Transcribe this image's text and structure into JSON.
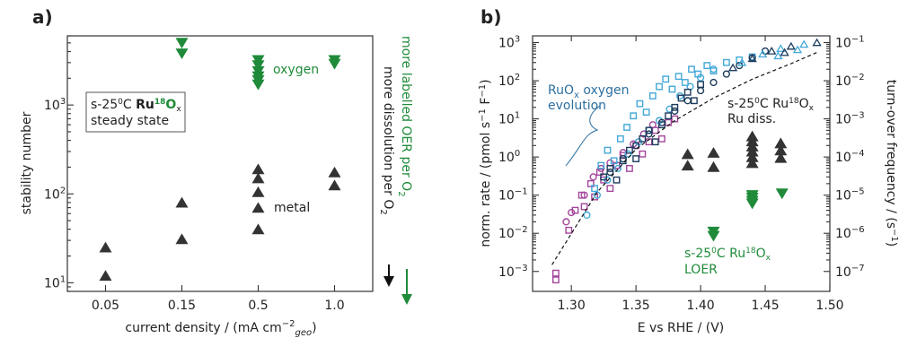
{
  "chart_data": [
    {
      "type": "scatter",
      "panel_label": "a)",
      "xlabel": "current density / (mA cm",
      "xlabel_exp": "−2",
      "xlabel_sub": "geo",
      "xlabel_close": ")",
      "ylabel": "stability number",
      "categories": [
        "0.05",
        "0.15",
        "0.5",
        "1.0"
      ],
      "yscale": "log",
      "ylim": [
        8,
        6000
      ],
      "yticks": [
        {
          "value": 10,
          "label": "10"
        },
        {
          "value": 100,
          "label": "10"
        },
        {
          "value": 1000,
          "label": "10"
        }
      ],
      "ytick_exps": [
        "1",
        "2",
        "3"
      ],
      "series": [
        {
          "name": "oxygen",
          "marker": "triangle-down",
          "color": "#1f8b3a",
          "points": [
            {
              "x": "0.15",
              "y": 5000
            },
            {
              "x": "0.15",
              "y": 3800
            },
            {
              "x": "0.5",
              "y": 3200
            },
            {
              "x": "0.5",
              "y": 2800
            },
            {
              "x": "0.5",
              "y": 2400
            },
            {
              "x": "0.5",
              "y": 2100
            },
            {
              "x": "0.5",
              "y": 1900
            },
            {
              "x": "0.5",
              "y": 1700
            },
            {
              "x": "1.0",
              "y": 3200
            },
            {
              "x": "1.0",
              "y": 2900
            }
          ]
        },
        {
          "name": "metal",
          "marker": "triangle-up",
          "color": "#333333",
          "points": [
            {
              "x": "0.05",
              "y": 25
            },
            {
              "x": "0.05",
              "y": 12
            },
            {
              "x": "0.15",
              "y": 80
            },
            {
              "x": "0.15",
              "y": 31
            },
            {
              "x": "0.5",
              "y": 190
            },
            {
              "x": "0.5",
              "y": 150
            },
            {
              "x": "0.5",
              "y": 105
            },
            {
              "x": "0.5",
              "y": 70
            },
            {
              "x": "0.5",
              "y": 40
            },
            {
              "x": "1.0",
              "y": 175
            },
            {
              "x": "1.0",
              "y": 125
            }
          ]
        }
      ],
      "legend_box": {
        "line1_pre": "s-25",
        "line1_deg": "0",
        "line1_c": "C ",
        "line1_ru": "Ru",
        "line1_iso": "18",
        "line1_o": "O",
        "line1_x": "x",
        "line2": "steady state"
      },
      "side_text_green": "more labelled OER per O",
      "side_text_black": "more dissolution per O",
      "side_sub": "2"
    },
    {
      "type": "scatter",
      "panel_label": "b)",
      "xlabel": "E vs RHE / (V)",
      "ylabel": "norm. rate / (pmol s",
      "ylabel_mid": " F",
      "ylabel_end": ")",
      "ylabel_exp": "−1",
      "y2label": "turn-over frequency / (s",
      "y2label_end": ")",
      "xlim": [
        1.27,
        1.5
      ],
      "xticks": [
        "1.30",
        "1.35",
        "1.40",
        "1.45",
        "1.50"
      ],
      "yscale": "log",
      "ylim": [
        0.0003,
        1500
      ],
      "ytick_exps": [
        "−3",
        "−2",
        "−1",
        "0",
        "1",
        "2",
        "3"
      ],
      "y2ticks": [
        {
          "value": 0.001,
          "exp": "−7"
        },
        {
          "value": 0.01,
          "exp": "−6"
        },
        {
          "value": 0.1,
          "exp": "−5"
        },
        {
          "value": 1,
          "exp": "−4"
        },
        {
          "value": 10,
          "exp": "−3"
        },
        {
          "value": 100,
          "exp": "−2"
        },
        {
          "value": 1000,
          "exp": "−1"
        }
      ],
      "fit_line": [
        [
          1.285,
          0.0015
        ],
        [
          1.32,
          0.12
        ],
        [
          1.35,
          1.6
        ],
        [
          1.38,
          9
        ],
        [
          1.41,
          35
        ],
        [
          1.44,
          110
        ],
        [
          1.47,
          280
        ],
        [
          1.49,
          550
        ]
      ],
      "ru_diss_points": [
        [
          1.39,
          1.2
        ],
        [
          1.39,
          0.6
        ],
        [
          1.41,
          1.3
        ],
        [
          1.41,
          0.55
        ],
        [
          1.44,
          3.5
        ],
        [
          1.44,
          2.6
        ],
        [
          1.44,
          1.9
        ],
        [
          1.44,
          1.4
        ],
        [
          1.44,
          1.0
        ],
        [
          1.44,
          0.7
        ],
        [
          1.462,
          2.3
        ],
        [
          1.462,
          1.5
        ],
        [
          1.462,
          0.95
        ]
      ],
      "loer_points": [
        [
          1.41,
          0.011
        ],
        [
          1.41,
          0.0085
        ],
        [
          1.44,
          0.1
        ],
        [
          1.44,
          0.085
        ],
        [
          1.44,
          0.07
        ],
        [
          1.44,
          0.06
        ],
        [
          1.463,
          0.11
        ]
      ],
      "ruox_squares_magenta": [
        [
          1.288,
          0.0009
        ],
        [
          1.288,
          0.0006
        ],
        [
          1.298,
          0.012
        ],
        [
          1.303,
          0.04
        ],
        [
          1.308,
          0.1
        ],
        [
          1.31,
          0.05
        ],
        [
          1.315,
          0.2
        ],
        [
          1.318,
          0.09
        ],
        [
          1.322,
          0.4
        ],
        [
          1.325,
          0.25
        ],
        [
          1.33,
          0.15
        ],
        [
          1.335,
          0.6
        ],
        [
          1.34,
          1.1
        ],
        [
          1.345,
          0.5
        ],
        [
          1.35,
          2.0
        ],
        [
          1.355,
          1.2
        ],
        [
          1.36,
          2.5
        ],
        [
          1.365,
          5
        ],
        [
          1.37,
          3
        ],
        [
          1.375,
          8
        ],
        [
          1.38,
          10
        ]
      ],
      "ruox_squares_cyan": [
        [
          1.318,
          0.15
        ],
        [
          1.323,
          0.6
        ],
        [
          1.328,
          1.5
        ],
        [
          1.333,
          0.8
        ],
        [
          1.338,
          3
        ],
        [
          1.343,
          6
        ],
        [
          1.348,
          12
        ],
        [
          1.353,
          25
        ],
        [
          1.358,
          15
        ],
        [
          1.363,
          40
        ],
        [
          1.368,
          70
        ],
        [
          1.373,
          110
        ],
        [
          1.378,
          60
        ],
        [
          1.383,
          130
        ],
        [
          1.388,
          90
        ],
        [
          1.393,
          200
        ],
        [
          1.398,
          150
        ],
        [
          1.405,
          250
        ],
        [
          1.41,
          180
        ],
        [
          1.42,
          300
        ],
        [
          1.43,
          350
        ],
        [
          1.44,
          420
        ]
      ],
      "ruox_squares_navy": [
        [
          1.325,
          0.3
        ],
        [
          1.33,
          0.5
        ],
        [
          1.335,
          0.25
        ],
        [
          1.34,
          0.8
        ],
        [
          1.345,
          1.5
        ],
        [
          1.35,
          0.9
        ],
        [
          1.355,
          3
        ],
        [
          1.36,
          5
        ],
        [
          1.365,
          2.5
        ],
        [
          1.37,
          7
        ],
        [
          1.375,
          12
        ],
        [
          1.38,
          20
        ],
        [
          1.385,
          35
        ],
        [
          1.39,
          50
        ],
        [
          1.395,
          30
        ],
        [
          1.4,
          80
        ]
      ],
      "ruox_circles_magenta": [
        [
          1.296,
          0.02
        ],
        [
          1.3,
          0.035
        ],
        [
          1.31,
          0.1
        ],
        [
          1.317,
          0.3
        ],
        [
          1.323,
          0.5
        ],
        [
          1.33,
          0.7
        ],
        [
          1.34,
          1.3
        ],
        [
          1.348,
          2.2
        ],
        [
          1.356,
          4
        ],
        [
          1.363,
          7
        ]
      ],
      "ruox_circles_cyan": [
        [
          1.312,
          0.03
        ],
        [
          1.32,
          0.1
        ],
        [
          1.328,
          0.25
        ],
        [
          1.336,
          0.5
        ],
        [
          1.344,
          1.2
        ],
        [
          1.352,
          2.5
        ],
        [
          1.36,
          5
        ],
        [
          1.368,
          9
        ],
        [
          1.376,
          18
        ],
        [
          1.384,
          40
        ],
        [
          1.392,
          70
        ],
        [
          1.4,
          120
        ],
        [
          1.41,
          200
        ]
      ],
      "ruox_circles_navy": [
        [
          1.33,
          0.4
        ],
        [
          1.34,
          0.9
        ],
        [
          1.35,
          2
        ],
        [
          1.36,
          4
        ],
        [
          1.37,
          8
        ],
        [
          1.38,
          16
        ],
        [
          1.39,
          30
        ],
        [
          1.4,
          55
        ],
        [
          1.41,
          90
        ],
        [
          1.42,
          150
        ],
        [
          1.43,
          250
        ],
        [
          1.44,
          400
        ],
        [
          1.45,
          600
        ]
      ],
      "ruox_triangles": [
        [
          1.425,
          220
        ],
        [
          1.432,
          300
        ],
        [
          1.44,
          380
        ],
        [
          1.448,
          500
        ],
        [
          1.455,
          600
        ],
        [
          1.462,
          700
        ],
        [
          1.47,
          800
        ],
        [
          1.48,
          900
        ],
        [
          1.49,
          1000
        ],
        [
          1.46,
          450
        ],
        [
          1.465,
          550
        ],
        [
          1.475,
          650
        ]
      ],
      "ruox_label_l1_pre": "RuO",
      "ruox_label_l1_sub": "x",
      "ruox_label_l1_post": " oxygen",
      "ruox_label_l2": "evolution",
      "rudiss_label_l1_pre": "s-25",
      "rudiss_label_l1_deg": "0",
      "rudiss_label_l1_mid": "C Ru",
      "rudiss_label_l1_iso": "18",
      "rudiss_label_l1_o": "O",
      "rudiss_label_l1_x": "x",
      "rudiss_label_l2": "Ru diss.",
      "loer_label_l1_pre": "s-25",
      "loer_label_l1_deg": "0",
      "loer_label_l1_mid": "C Ru",
      "loer_label_l1_iso": "18",
      "loer_label_l1_o": "O",
      "loer_label_l1_x": "x",
      "loer_label_l2": "LOER"
    }
  ],
  "colors": {
    "green": "#1f8b3a",
    "dark": "#333333",
    "blue": "#2d6f9f",
    "magenta": "#a3459b",
    "cyan": "#43a8d8",
    "navy": "#1d3b5c"
  }
}
